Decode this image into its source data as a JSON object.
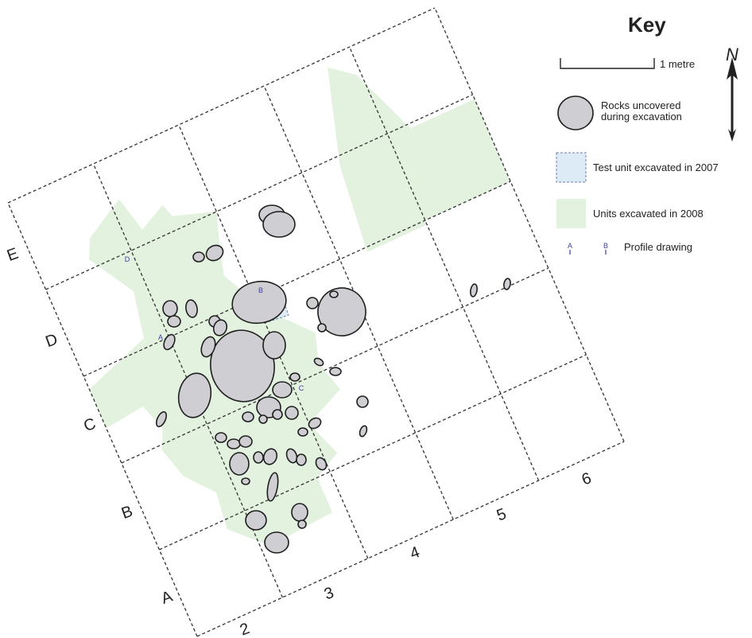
{
  "key": {
    "title": "Key",
    "scale_label": "1 metre",
    "north_symbol": "N",
    "items": [
      {
        "label": "Rocks uncovered\nduring excavation",
        "symbol": "rock",
        "color": "#cfcfd3"
      },
      {
        "label": "Test unit excavated in 2007",
        "symbol": "test-unit",
        "color": "#dcebf5"
      },
      {
        "label": "Units excavated in 2008",
        "symbol": "excavated-unit",
        "color": "#e3f1df"
      },
      {
        "label": "Profile drawing",
        "symbol": "profile",
        "color": "#3a3fa8",
        "examples": [
          "A",
          "B"
        ]
      }
    ]
  },
  "grid": {
    "row_labels": [
      "A",
      "B",
      "C",
      "D",
      "E"
    ],
    "col_labels": [
      "2",
      "3",
      "4",
      "5",
      "6"
    ],
    "profile_points": [
      "A",
      "B",
      "C",
      "D"
    ]
  },
  "colors": {
    "rock_fill": "#cfcfd3",
    "excavated_2008": "#e3f1df",
    "test_unit_2007": "#dcebf5",
    "profile_marker": "#3a3fa8"
  }
}
